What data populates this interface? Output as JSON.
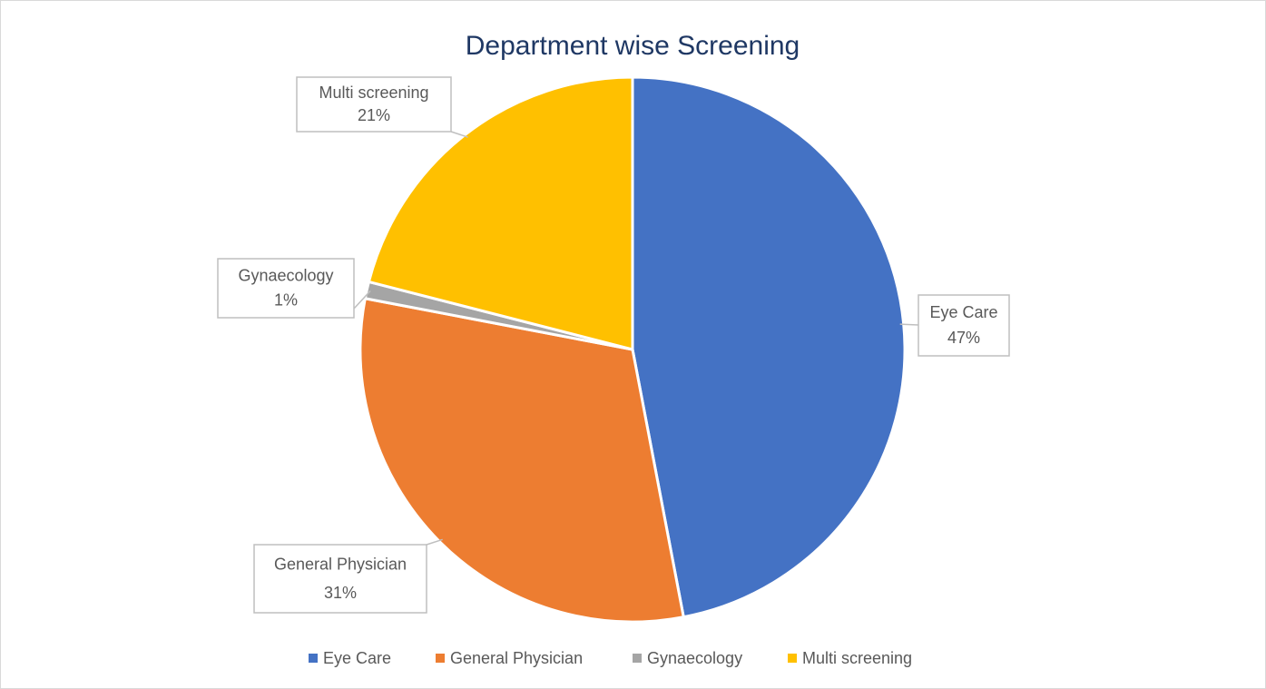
{
  "chart_data": {
    "type": "pie",
    "title": "Department wise Screening",
    "categories": [
      "Eye Care",
      "General Physician",
      "Gynaecology",
      "Multi screening"
    ],
    "values": [
      47,
      31,
      1,
      21
    ],
    "value_labels": [
      "47%",
      "31%",
      "1%",
      "21%"
    ],
    "colors": [
      "#4472c4",
      "#ed7d31",
      "#a5a5a5",
      "#ffc000"
    ],
    "legend": "bottom"
  }
}
